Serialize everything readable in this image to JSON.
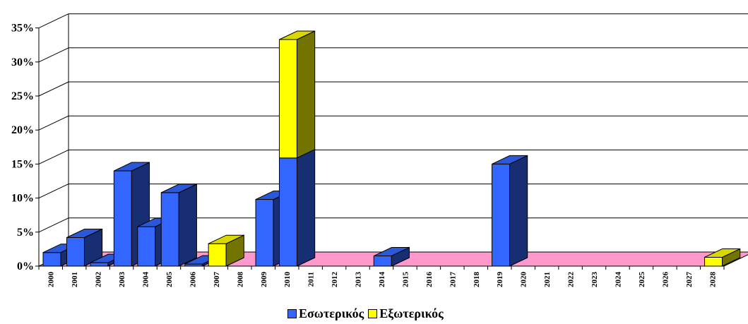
{
  "chart_data": {
    "type": "bar",
    "stacked": true,
    "three_d": true,
    "categories": [
      "2000",
      "2001",
      "2002",
      "2003",
      "2004",
      "2005",
      "2006",
      "2007",
      "2008",
      "2009",
      "2010",
      "2011",
      "2012",
      "2013",
      "2014",
      "2015",
      "2016",
      "2017",
      "2018",
      "2019",
      "2020",
      "2021",
      "2022",
      "2023",
      "2024",
      "2025",
      "2026",
      "2027",
      "2028"
    ],
    "series": [
      {
        "name": "Εσωτερικός",
        "color": "#3366ff",
        "values": [
          2,
          4.2,
          0.5,
          14,
          5.8,
          10.8,
          0.3,
          0,
          0,
          9.8,
          15.9,
          0,
          0,
          0,
          1.5,
          0,
          0,
          0,
          0,
          15,
          0,
          0,
          0,
          0,
          0,
          0,
          0,
          0,
          0
        ]
      },
      {
        "name": "Εξωτερικός",
        "color": "#ffff00",
        "values": [
          0,
          0,
          0,
          0,
          0,
          0,
          0,
          3.3,
          0,
          0,
          17.4,
          0,
          0,
          0,
          0,
          0,
          0,
          0,
          0,
          0,
          0,
          0,
          0,
          0,
          0,
          0,
          0,
          0,
          1.3
        ]
      }
    ],
    "y_ticks": [
      "0%",
      "5%",
      "10%",
      "15%",
      "20%",
      "25%",
      "30%",
      "35%"
    ],
    "ylim": [
      0,
      35
    ],
    "grid": true,
    "floor_color": "#ff99cc",
    "legend_position": "bottom"
  }
}
